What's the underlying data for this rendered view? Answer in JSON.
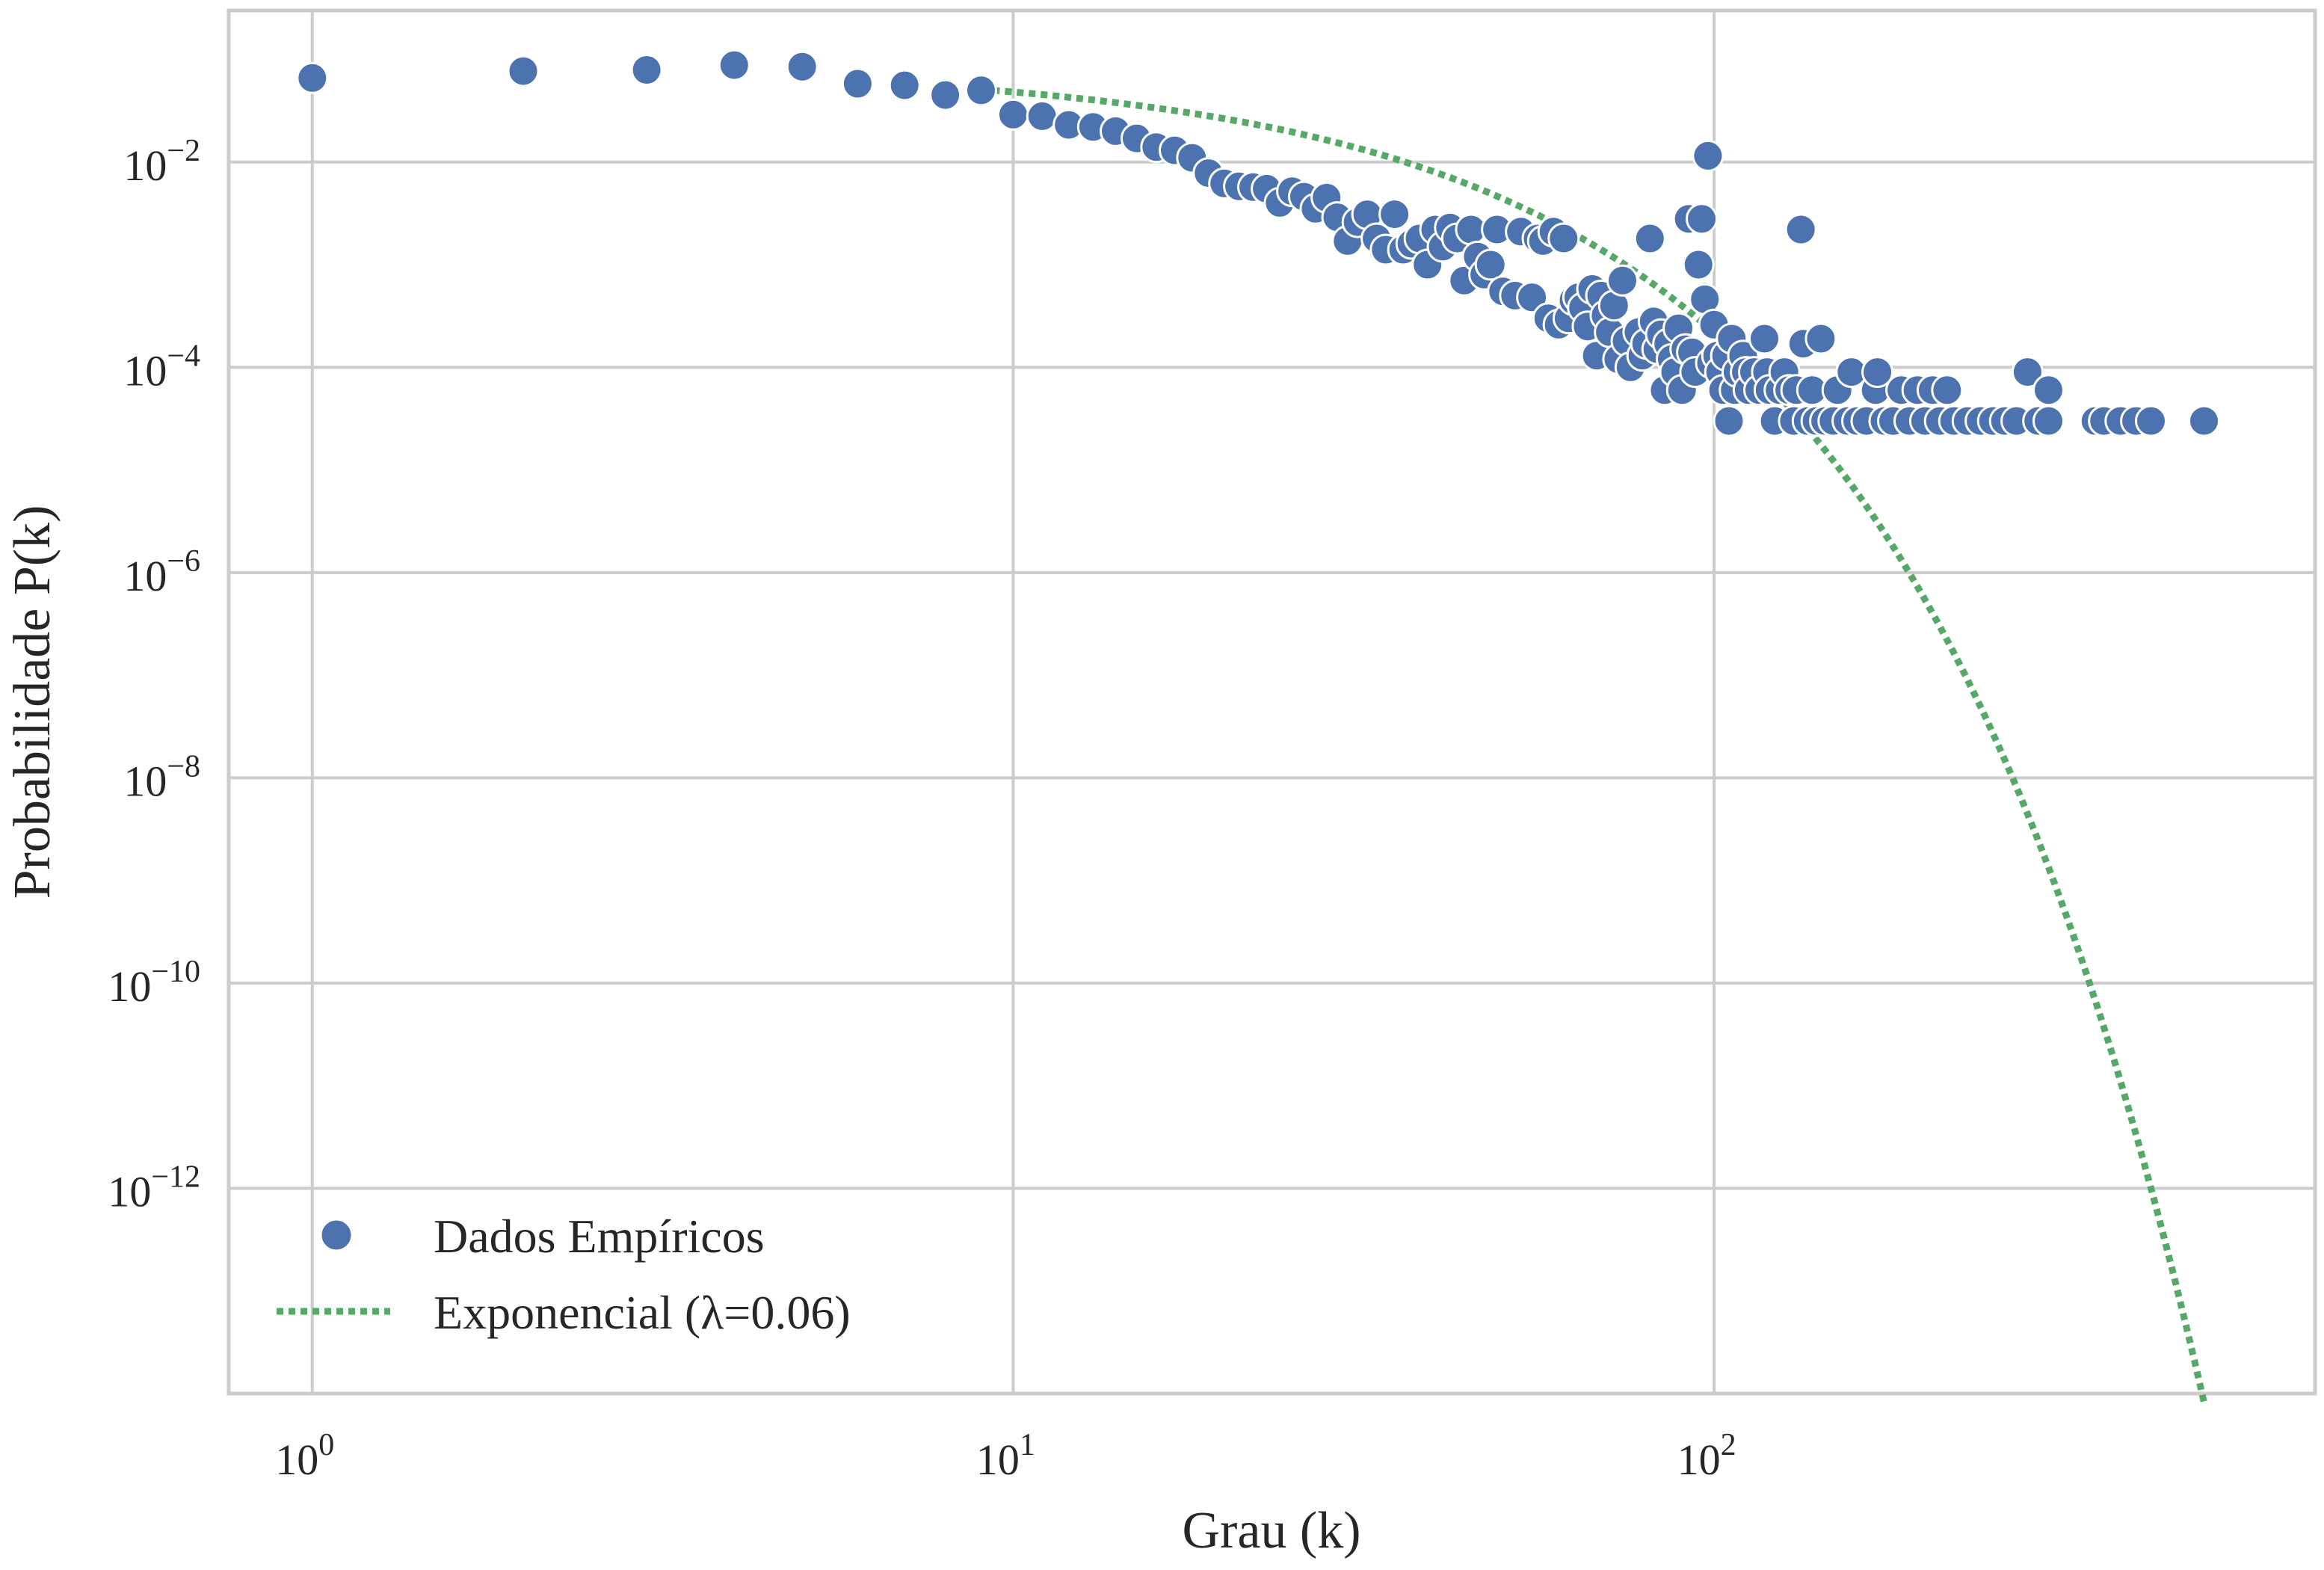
{
  "chart_data": {
    "type": "scatter",
    "xlabel": "Grau (k)",
    "ylabel": "Probabilidade P(k)",
    "xscale": "log",
    "yscale": "log",
    "xlim": [
      0.76,
      720
    ],
    "ylim": [
      1e-14,
      0.3
    ],
    "x_ticks": [
      {
        "value": 1,
        "base": "10",
        "exp": "0"
      },
      {
        "value": 10,
        "base": "10",
        "exp": "1"
      },
      {
        "value": 100,
        "base": "10",
        "exp": "2"
      }
    ],
    "y_ticks": [
      {
        "value": 0.01,
        "base": "10",
        "exp": "−2"
      },
      {
        "value": 0.0001,
        "base": "10",
        "exp": "−4"
      },
      {
        "value": 1e-06,
        "base": "10",
        "exp": "−6"
      },
      {
        "value": 1e-08,
        "base": "10",
        "exp": "−8"
      },
      {
        "value": 1e-10,
        "base": "10",
        "exp": "−10"
      },
      {
        "value": 1e-12,
        "base": "10",
        "exp": "−12"
      }
    ],
    "grid": true,
    "legend_position": "bottom-left",
    "colors": {
      "scatter": "#4c72b0",
      "fit": "#55a868",
      "grid": "#cccccc",
      "axes": "#cccccc"
    },
    "series": [
      {
        "name": "Dados Empíricos",
        "kind": "scatter",
        "points": [
          [
            1,
            0.066
          ],
          [
            2,
            0.077
          ],
          [
            3,
            0.079
          ],
          [
            4,
            0.088
          ],
          [
            5,
            0.085
          ],
          [
            6,
            0.058
          ],
          [
            7,
            0.056
          ],
          [
            8,
            0.045
          ],
          [
            9,
            0.05
          ],
          [
            10,
            0.029
          ],
          [
            11,
            0.028
          ],
          [
            12,
            0.023
          ],
          [
            13,
            0.022
          ],
          [
            14,
            0.02
          ],
          [
            15,
            0.017
          ],
          [
            16,
            0.014
          ],
          [
            17,
            0.013
          ],
          [
            18,
            0.011
          ],
          [
            19,
            0.0078
          ],
          [
            20,
            0.0062
          ],
          [
            21,
            0.0058
          ],
          [
            22,
            0.0057
          ],
          [
            23,
            0.0055
          ],
          [
            24,
            0.004
          ],
          [
            25,
            0.0052
          ],
          [
            26,
            0.0046
          ],
          [
            27,
            0.0035
          ],
          [
            28,
            0.0045
          ],
          [
            29,
            0.0029
          ],
          [
            30,
            0.0017
          ],
          [
            31,
            0.0026
          ],
          [
            32,
            0.0031
          ],
          [
            33,
            0.0018
          ],
          [
            34,
            0.0014
          ],
          [
            35,
            0.0031
          ],
          [
            36,
            0.0014
          ],
          [
            37,
            0.0016
          ],
          [
            38,
            0.0018
          ],
          [
            39,
            0.001
          ],
          [
            40,
            0.0022
          ],
          [
            41,
            0.0015
          ],
          [
            42,
            0.0023
          ],
          [
            43,
            0.0018
          ],
          [
            44,
            0.0007
          ],
          [
            45,
            0.0022
          ],
          [
            46,
            0.0012
          ],
          [
            47,
            0.0008
          ],
          [
            48,
            0.001
          ],
          [
            49,
            0.0022
          ],
          [
            50,
            0.00055
          ],
          [
            52,
            0.0005
          ],
          [
            53,
            0.0021
          ],
          [
            55,
            0.00048
          ],
          [
            56,
            0.0018
          ],
          [
            57,
            0.0017
          ],
          [
            58,
            0.0003
          ],
          [
            59,
            0.0021
          ],
          [
            60,
            0.00026
          ],
          [
            61,
            0.0018
          ],
          [
            62,
            0.0003
          ],
          [
            63,
            0.00045
          ],
          [
            64,
            0.00048
          ],
          [
            65,
            0.00038
          ],
          [
            66,
            0.00025
          ],
          [
            67,
            0.00058
          ],
          [
            68,
            0.00013
          ],
          [
            69,
            0.0005
          ],
          [
            70,
            0.00032
          ],
          [
            71,
            0.00022
          ],
          [
            72,
            0.0004
          ],
          [
            73,
            0.00012
          ],
          [
            74,
            0.0007
          ],
          [
            75,
            0.00018
          ],
          [
            76,
            0.0001
          ],
          [
            78,
            0.00022
          ],
          [
            79,
            0.00013
          ],
          [
            80,
            0.00017
          ],
          [
            81,
            0.0018
          ],
          [
            82,
            0.00028
          ],
          [
            83,
            0.00015
          ],
          [
            84,
            0.00021
          ],
          [
            85,
            6e-05
          ],
          [
            86,
            0.00017
          ],
          [
            87,
            0.00012
          ],
          [
            88,
            9e-05
          ],
          [
            89,
            0.00024
          ],
          [
            90,
            6e-05
          ],
          [
            91,
            0.00015
          ],
          [
            92,
            0.0028
          ],
          [
            93,
            0.00014
          ],
          [
            94,
            9e-05
          ],
          [
            95,
            0.001
          ],
          [
            96,
            0.0028
          ],
          [
            97,
            0.00046
          ],
          [
            98,
            0.0115
          ],
          [
            99,
            0.00011
          ],
          [
            100,
            0.00026
          ],
          [
            101,
            0.00013
          ],
          [
            102,
            9e-05
          ],
          [
            103,
            6e-05
          ],
          [
            104,
            0.00013
          ],
          [
            105,
            3e-05
          ],
          [
            106,
            0.00019
          ],
          [
            107,
            6e-05
          ],
          [
            108,
            9e-05
          ],
          [
            110,
            0.00013
          ],
          [
            111,
            9e-05
          ],
          [
            112,
            6e-05
          ],
          [
            114,
            9e-05
          ],
          [
            116,
            6e-05
          ],
          [
            118,
            0.00019
          ],
          [
            119,
            9e-05
          ],
          [
            120,
            6e-05
          ],
          [
            122,
            3e-05
          ],
          [
            124,
            6e-05
          ],
          [
            126,
            9e-05
          ],
          [
            128,
            6e-05
          ],
          [
            130,
            3e-05
          ],
          [
            131,
            6e-05
          ],
          [
            133,
            0.0022
          ],
          [
            134,
            0.00017
          ],
          [
            136,
            3e-05
          ],
          [
            138,
            6e-05
          ],
          [
            140,
            3e-05
          ],
          [
            142,
            0.00019
          ],
          [
            144,
            3e-05
          ],
          [
            148,
            3e-05
          ],
          [
            150,
            6e-05
          ],
          [
            155,
            3e-05
          ],
          [
            157,
            9e-05
          ],
          [
            160,
            3e-05
          ],
          [
            165,
            3e-05
          ],
          [
            170,
            6e-05
          ],
          [
            171,
            9e-05
          ],
          [
            175,
            3e-05
          ],
          [
            180,
            3e-05
          ],
          [
            185,
            6e-05
          ],
          [
            190,
            3e-05
          ],
          [
            195,
            6e-05
          ],
          [
            200,
            3e-05
          ],
          [
            205,
            6e-05
          ],
          [
            210,
            3e-05
          ],
          [
            215,
            6e-05
          ],
          [
            220,
            3e-05
          ],
          [
            230,
            3e-05
          ],
          [
            240,
            3e-05
          ],
          [
            250,
            3e-05
          ],
          [
            260,
            3e-05
          ],
          [
            270,
            3e-05
          ],
          [
            280,
            9e-05
          ],
          [
            290,
            3e-05
          ],
          [
            300,
            6e-05
          ],
          [
            300,
            3e-05
          ],
          [
            350,
            3e-05
          ],
          [
            360,
            3e-05
          ],
          [
            380,
            3e-05
          ],
          [
            400,
            3e-05
          ],
          [
            420,
            3e-05
          ],
          [
            500,
            3e-05
          ]
        ]
      },
      {
        "name": "Exponencial (λ=0.06)",
        "kind": "line",
        "style": "dotted",
        "lambda": 0.06,
        "amplitude": 0.088,
        "x_range": [
          9,
          500
        ]
      }
    ]
  }
}
